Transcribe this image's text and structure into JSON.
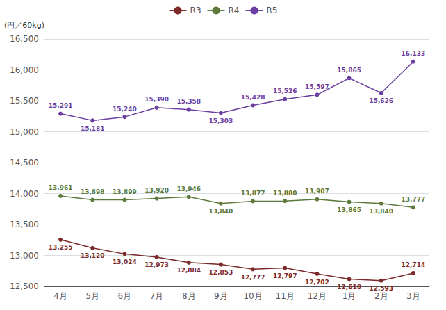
{
  "chart_data": {
    "type": "line",
    "categories": [
      "4月",
      "5月",
      "6月",
      "7月",
      "8月",
      "9月",
      "10月",
      "11月",
      "12月",
      "1月",
      "2月",
      "3月"
    ],
    "y_label": "(円／60kg)",
    "ylim": [
      12500,
      16500
    ],
    "yticks": [
      {
        "value": 12500,
        "label": "12,500"
      },
      {
        "value": 13000,
        "label": "13,000"
      },
      {
        "value": 13500,
        "label": "13,500"
      },
      {
        "value": 14000,
        "label": "14,000"
      },
      {
        "value": 14500,
        "label": "14,500"
      },
      {
        "value": 15000,
        "label": "15,000"
      },
      {
        "value": 15500,
        "label": "15,500"
      },
      {
        "value": 16000,
        "label": "16,000"
      },
      {
        "value": 16500,
        "label": "16,500"
      }
    ],
    "grid": true,
    "legend": "top",
    "data_labels": true,
    "marker": "circle",
    "series": [
      {
        "name": "R3",
        "color": "#7B2929",
        "values": [
          13255,
          13120,
          13024,
          12973,
          12884,
          12853,
          12777,
          12797,
          12702,
          12618,
          12593,
          12714
        ],
        "value_labels": [
          "13,255",
          "13,120",
          "13,024",
          "12,973",
          "12,884",
          "12,853",
          "12,777",
          "12,797",
          "12,702",
          "12,618",
          "12,593",
          "12,714"
        ]
      },
      {
        "name": "R4",
        "color": "#5B7A3C",
        "values": [
          13961,
          13898,
          13899,
          13920,
          13946,
          13840,
          13877,
          13880,
          13907,
          13865,
          13840,
          13777
        ],
        "value_labels": [
          "13,961",
          "13,898",
          "13,899",
          "13,920",
          "13,946",
          "13,840",
          "13,877",
          "13,880",
          "13,907",
          "13,865",
          "13,840",
          "13,777"
        ]
      },
      {
        "name": "R5",
        "color": "#6B3FA0",
        "values": [
          15291,
          15181,
          15240,
          15390,
          15358,
          15303,
          15428,
          15526,
          15597,
          15865,
          15626,
          16133
        ],
        "value_labels": [
          "15,291",
          "15,181",
          "15,240",
          "15,390",
          "15,358",
          "15,303",
          "15,428",
          "15,526",
          "15,597",
          "15,865",
          "15,626",
          "16,133"
        ]
      }
    ]
  }
}
